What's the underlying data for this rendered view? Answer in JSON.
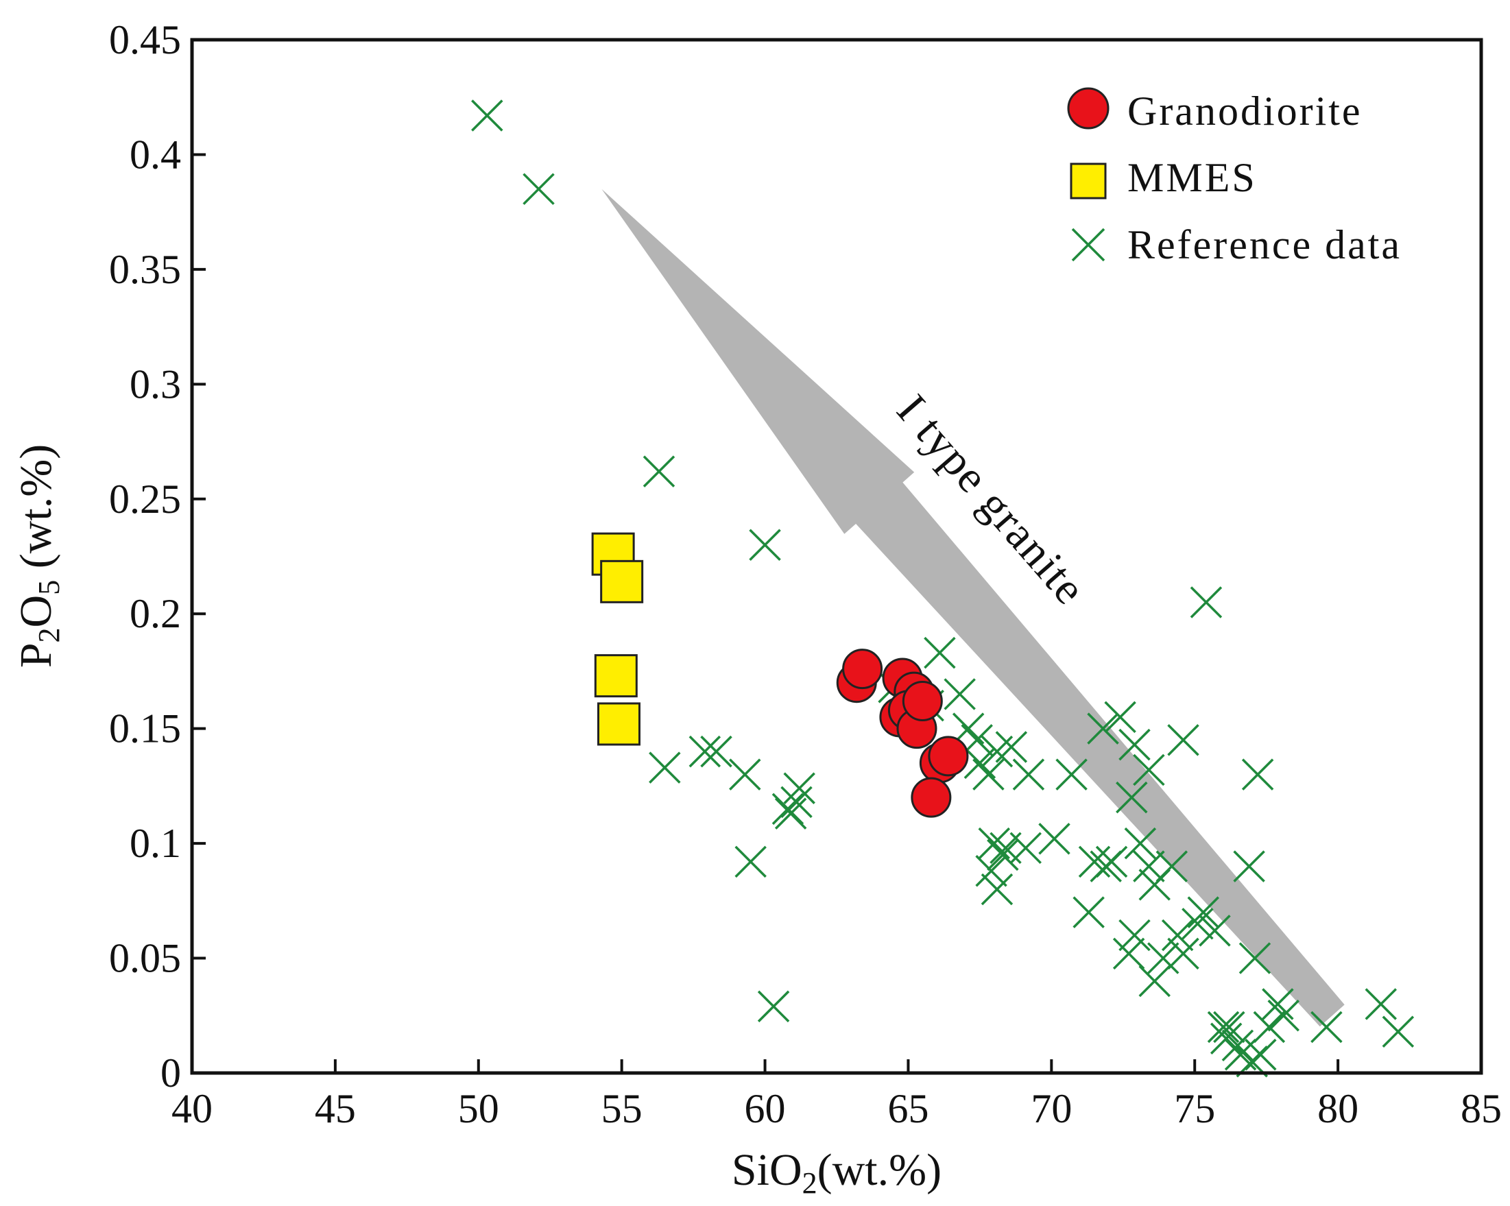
{
  "chart_data": {
    "type": "scatter",
    "title": "",
    "xlabel": {
      "main": "SiO",
      "sub": "2",
      "unit": "(wt.%)"
    },
    "ylabel": {
      "p": "P",
      "p_sub": "2",
      "o": "O",
      "o_sub": "5",
      "unit": " (wt.%)"
    },
    "xlim": [
      40,
      85
    ],
    "ylim": [
      0,
      0.45
    ],
    "xticks": [
      40,
      45,
      50,
      55,
      60,
      65,
      70,
      75,
      80,
      85
    ],
    "xtick_labels": [
      "40",
      "45",
      "50",
      "55",
      "60",
      "65",
      "70",
      "75",
      "80",
      "85"
    ],
    "yticks": [
      0,
      0.05,
      0.1,
      0.15,
      0.2,
      0.25,
      0.3,
      0.35,
      0.4,
      0.45
    ],
    "ytick_labels": [
      "0",
      "0.05",
      "0.1",
      "0.15",
      "0.2",
      "0.25",
      "0.3",
      "0.35",
      "0.4",
      "0.45"
    ],
    "grid": false,
    "legend_position": "top-right",
    "series": [
      {
        "name": "Granodiorite",
        "marker": "circle",
        "color": "#e8121a",
        "points": [
          [
            63.2,
            0.17
          ],
          [
            63.4,
            0.176
          ],
          [
            64.8,
            0.172
          ],
          [
            65.2,
            0.166
          ],
          [
            64.7,
            0.155
          ],
          [
            65.0,
            0.158
          ],
          [
            65.3,
            0.15
          ],
          [
            65.5,
            0.162
          ],
          [
            66.1,
            0.135
          ],
          [
            66.4,
            0.138
          ],
          [
            65.8,
            0.12
          ]
        ]
      },
      {
        "name": "MMES",
        "marker": "square",
        "color": "#ffee00",
        "points": [
          [
            54.7,
            0.226
          ],
          [
            55.0,
            0.214
          ],
          [
            54.8,
            0.173
          ],
          [
            54.9,
            0.152
          ]
        ]
      },
      {
        "name": "Reference data",
        "marker": "x",
        "color": "#1f8a3c",
        "points": [
          [
            50.3,
            0.417
          ],
          [
            52.1,
            0.385
          ],
          [
            56.3,
            0.262
          ],
          [
            60.0,
            0.23
          ],
          [
            56.5,
            0.133
          ],
          [
            57.9,
            0.14
          ],
          [
            58.3,
            0.14
          ],
          [
            59.3,
            0.13
          ],
          [
            59.5,
            0.092
          ],
          [
            60.8,
            0.115
          ],
          [
            61.1,
            0.118
          ],
          [
            60.9,
            0.113
          ],
          [
            61.2,
            0.124
          ],
          [
            60.3,
            0.029
          ],
          [
            64.5,
            0.168
          ],
          [
            64.9,
            0.162
          ],
          [
            65.1,
            0.155
          ],
          [
            65.7,
            0.16
          ],
          [
            66.1,
            0.183
          ],
          [
            66.8,
            0.165
          ],
          [
            67.1,
            0.15
          ],
          [
            67.4,
            0.145
          ],
          [
            67.8,
            0.13
          ],
          [
            67.5,
            0.135
          ],
          [
            68.1,
            0.14
          ],
          [
            68.6,
            0.142
          ],
          [
            68.0,
            0.1
          ],
          [
            68.3,
            0.095
          ],
          [
            67.9,
            0.088
          ],
          [
            68.1,
            0.08
          ],
          [
            68.4,
            0.098
          ],
          [
            69.1,
            0.098
          ],
          [
            69.2,
            0.13
          ],
          [
            70.1,
            0.102
          ],
          [
            70.7,
            0.13
          ],
          [
            71.3,
            0.07
          ],
          [
            71.5,
            0.092
          ],
          [
            71.8,
            0.15
          ],
          [
            71.9,
            0.09
          ],
          [
            72.1,
            0.092
          ],
          [
            72.4,
            0.155
          ],
          [
            72.9,
            0.143
          ],
          [
            72.8,
            0.12
          ],
          [
            73.1,
            0.1
          ],
          [
            73.4,
            0.132
          ],
          [
            72.9,
            0.06
          ],
          [
            72.7,
            0.052
          ],
          [
            73.4,
            0.09
          ],
          [
            73.6,
            0.082
          ],
          [
            73.6,
            0.04
          ],
          [
            73.9,
            0.05
          ],
          [
            74.2,
            0.09
          ],
          [
            74.6,
            0.145
          ],
          [
            74.4,
            0.06
          ],
          [
            74.6,
            0.052
          ],
          [
            75.1,
            0.065
          ],
          [
            75.3,
            0.07
          ],
          [
            75.4,
            0.205
          ],
          [
            75.7,
            0.062
          ],
          [
            76.0,
            0.02
          ],
          [
            76.1,
            0.015
          ],
          [
            76.2,
            0.02
          ],
          [
            76.5,
            0.012
          ],
          [
            76.6,
            0.008
          ],
          [
            76.9,
            0.09
          ],
          [
            77.0,
            0.005
          ],
          [
            77.3,
            0.008
          ],
          [
            77.1,
            0.05
          ],
          [
            77.2,
            0.13
          ],
          [
            77.6,
            0.02
          ],
          [
            77.9,
            0.03
          ],
          [
            78.1,
            0.025
          ],
          [
            79.6,
            0.02
          ],
          [
            81.5,
            0.03
          ],
          [
            82.1,
            0.018
          ]
        ]
      }
    ],
    "annotations": [
      {
        "text": "I type granite",
        "type": "arrow",
        "from": [
          79.8,
          0.025
        ],
        "to": [
          54.3,
          0.385
        ],
        "color": "#b4b4b4"
      }
    ]
  }
}
